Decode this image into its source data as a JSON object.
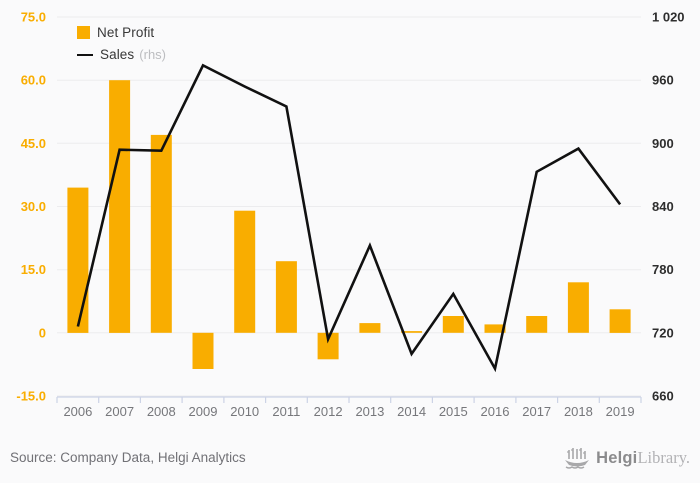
{
  "window": {
    "background": "#fafafb"
  },
  "legend": {
    "items": [
      {
        "label": "Net Profit",
        "suffix": "",
        "swatch": "square",
        "color": "#f9ad00"
      },
      {
        "label": "Sales",
        "suffix": "(rhs)",
        "swatch": "line",
        "color": "#111111"
      }
    ]
  },
  "chart_data": {
    "type": "bar",
    "subtype": "bar+line dual-axis",
    "categories": [
      "2006",
      "2007",
      "2008",
      "2009",
      "2010",
      "2011",
      "2012",
      "2013",
      "2014",
      "2015",
      "2016",
      "2017",
      "2018",
      "2019"
    ],
    "series": [
      {
        "name": "Net Profit",
        "type": "bar",
        "axis": "left",
        "color": "#f9ad00",
        "values": [
          34.5,
          60,
          47,
          -8.6,
          29,
          17,
          -6.3,
          2.3,
          0.4,
          4,
          2,
          4,
          12,
          5.6
        ]
      },
      {
        "name": "Sales (rhs)",
        "type": "line",
        "axis": "right",
        "color": "#111111",
        "values": [
          726,
          894,
          893,
          974,
          954,
          935,
          714,
          803,
          700,
          757,
          686,
          873,
          895,
          842
        ]
      }
    ],
    "title": "",
    "xlabel": "",
    "ylabel": "",
    "left_axis": {
      "min": -15,
      "max": 75,
      "ticks": [
        75,
        60,
        45,
        30,
        15,
        0,
        -15
      ],
      "labels": [
        "75.0",
        "60.0",
        "45.0",
        "30.0",
        "15.0",
        "0",
        "-15.0"
      ],
      "label_color": "#f9ad00"
    },
    "right_axis": {
      "min": 660,
      "max": 1020,
      "ticks": [
        1020,
        960,
        900,
        840,
        780,
        720,
        660
      ],
      "labels": [
        "1 020",
        "960",
        "900",
        "840",
        "780",
        "720",
        "660"
      ],
      "label_color": "#2e2e2e"
    },
    "grid": true,
    "gridline_color": "#ececee",
    "axisline_color": "#ccd3e6",
    "x_label_color": "#76777b",
    "legend_position": "top-left"
  },
  "source": {
    "text": "Source: Company Data, Helgi Analytics"
  },
  "logo": {
    "brand_bold": "Helgi",
    "brand_light": "Library."
  }
}
